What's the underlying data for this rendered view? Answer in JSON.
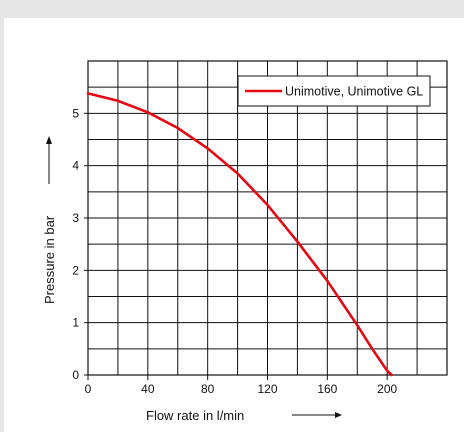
{
  "chart_data": {
    "type": "line",
    "xlabel": "Flow rate in l/min",
    "ylabel": "Pressure in bar",
    "xlim": [
      0,
      240
    ],
    "ylim": [
      0,
      6
    ],
    "x_ticks": [
      0,
      40,
      80,
      120,
      160,
      200
    ],
    "y_ticks": [
      0,
      1,
      2,
      3,
      4,
      5
    ],
    "x_grid_step": 20,
    "y_grid_step": 0.5,
    "grid": true,
    "legend_position": "top-right",
    "series": [
      {
        "name": "Unimotive, Unimotive GL",
        "color": "#e30613",
        "x": [
          0,
          20,
          40,
          60,
          80,
          100,
          120,
          140,
          160,
          180,
          190,
          200,
          203
        ],
        "y": [
          5.38,
          5.24,
          5.02,
          4.72,
          4.33,
          3.85,
          3.25,
          2.55,
          1.8,
          0.95,
          0.5,
          0.08,
          0
        ]
      }
    ]
  }
}
